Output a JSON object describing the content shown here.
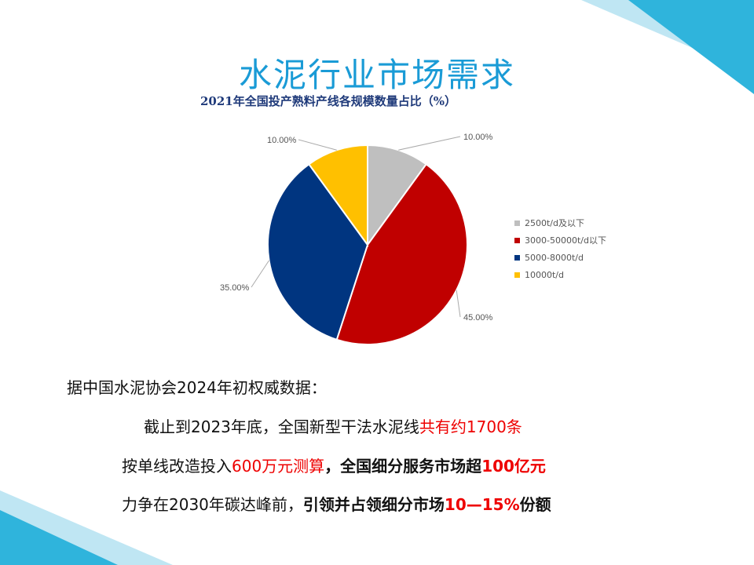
{
  "slide": {
    "title": "水泥行业市场需求"
  },
  "chart_data": {
    "type": "pie",
    "title": "2021年全国投产熟料产线各规模数量占比（%）",
    "categories": [
      "2500t/d及以下",
      "3000-50000t/d以下",
      "5000-8000t/d",
      "10000t/d"
    ],
    "values": [
      10,
      45,
      35,
      10
    ],
    "data_labels": [
      "10.00%",
      "45.00%",
      "35.00%",
      "10.00%"
    ],
    "colors": [
      "#bfbfbf",
      "#c00000",
      "#003580",
      "#ffc000"
    ],
    "legend": "right"
  },
  "body": {
    "line1": "据中国水泥协会2024年初权威数据：",
    "line2a": "截止到2023年底，全国新型干法水泥线",
    "line2b": "共有约1700条",
    "line3a": "按单线改造投入",
    "line3b": "600万元测算",
    "line3c": "，全国细分服务市场超",
    "line3d": "100亿元",
    "line4a": "力争在2030年碳达峰前，",
    "line4b": "引领并占领细分市场",
    "line4c": "10—15%",
    "line4d": "份额"
  }
}
